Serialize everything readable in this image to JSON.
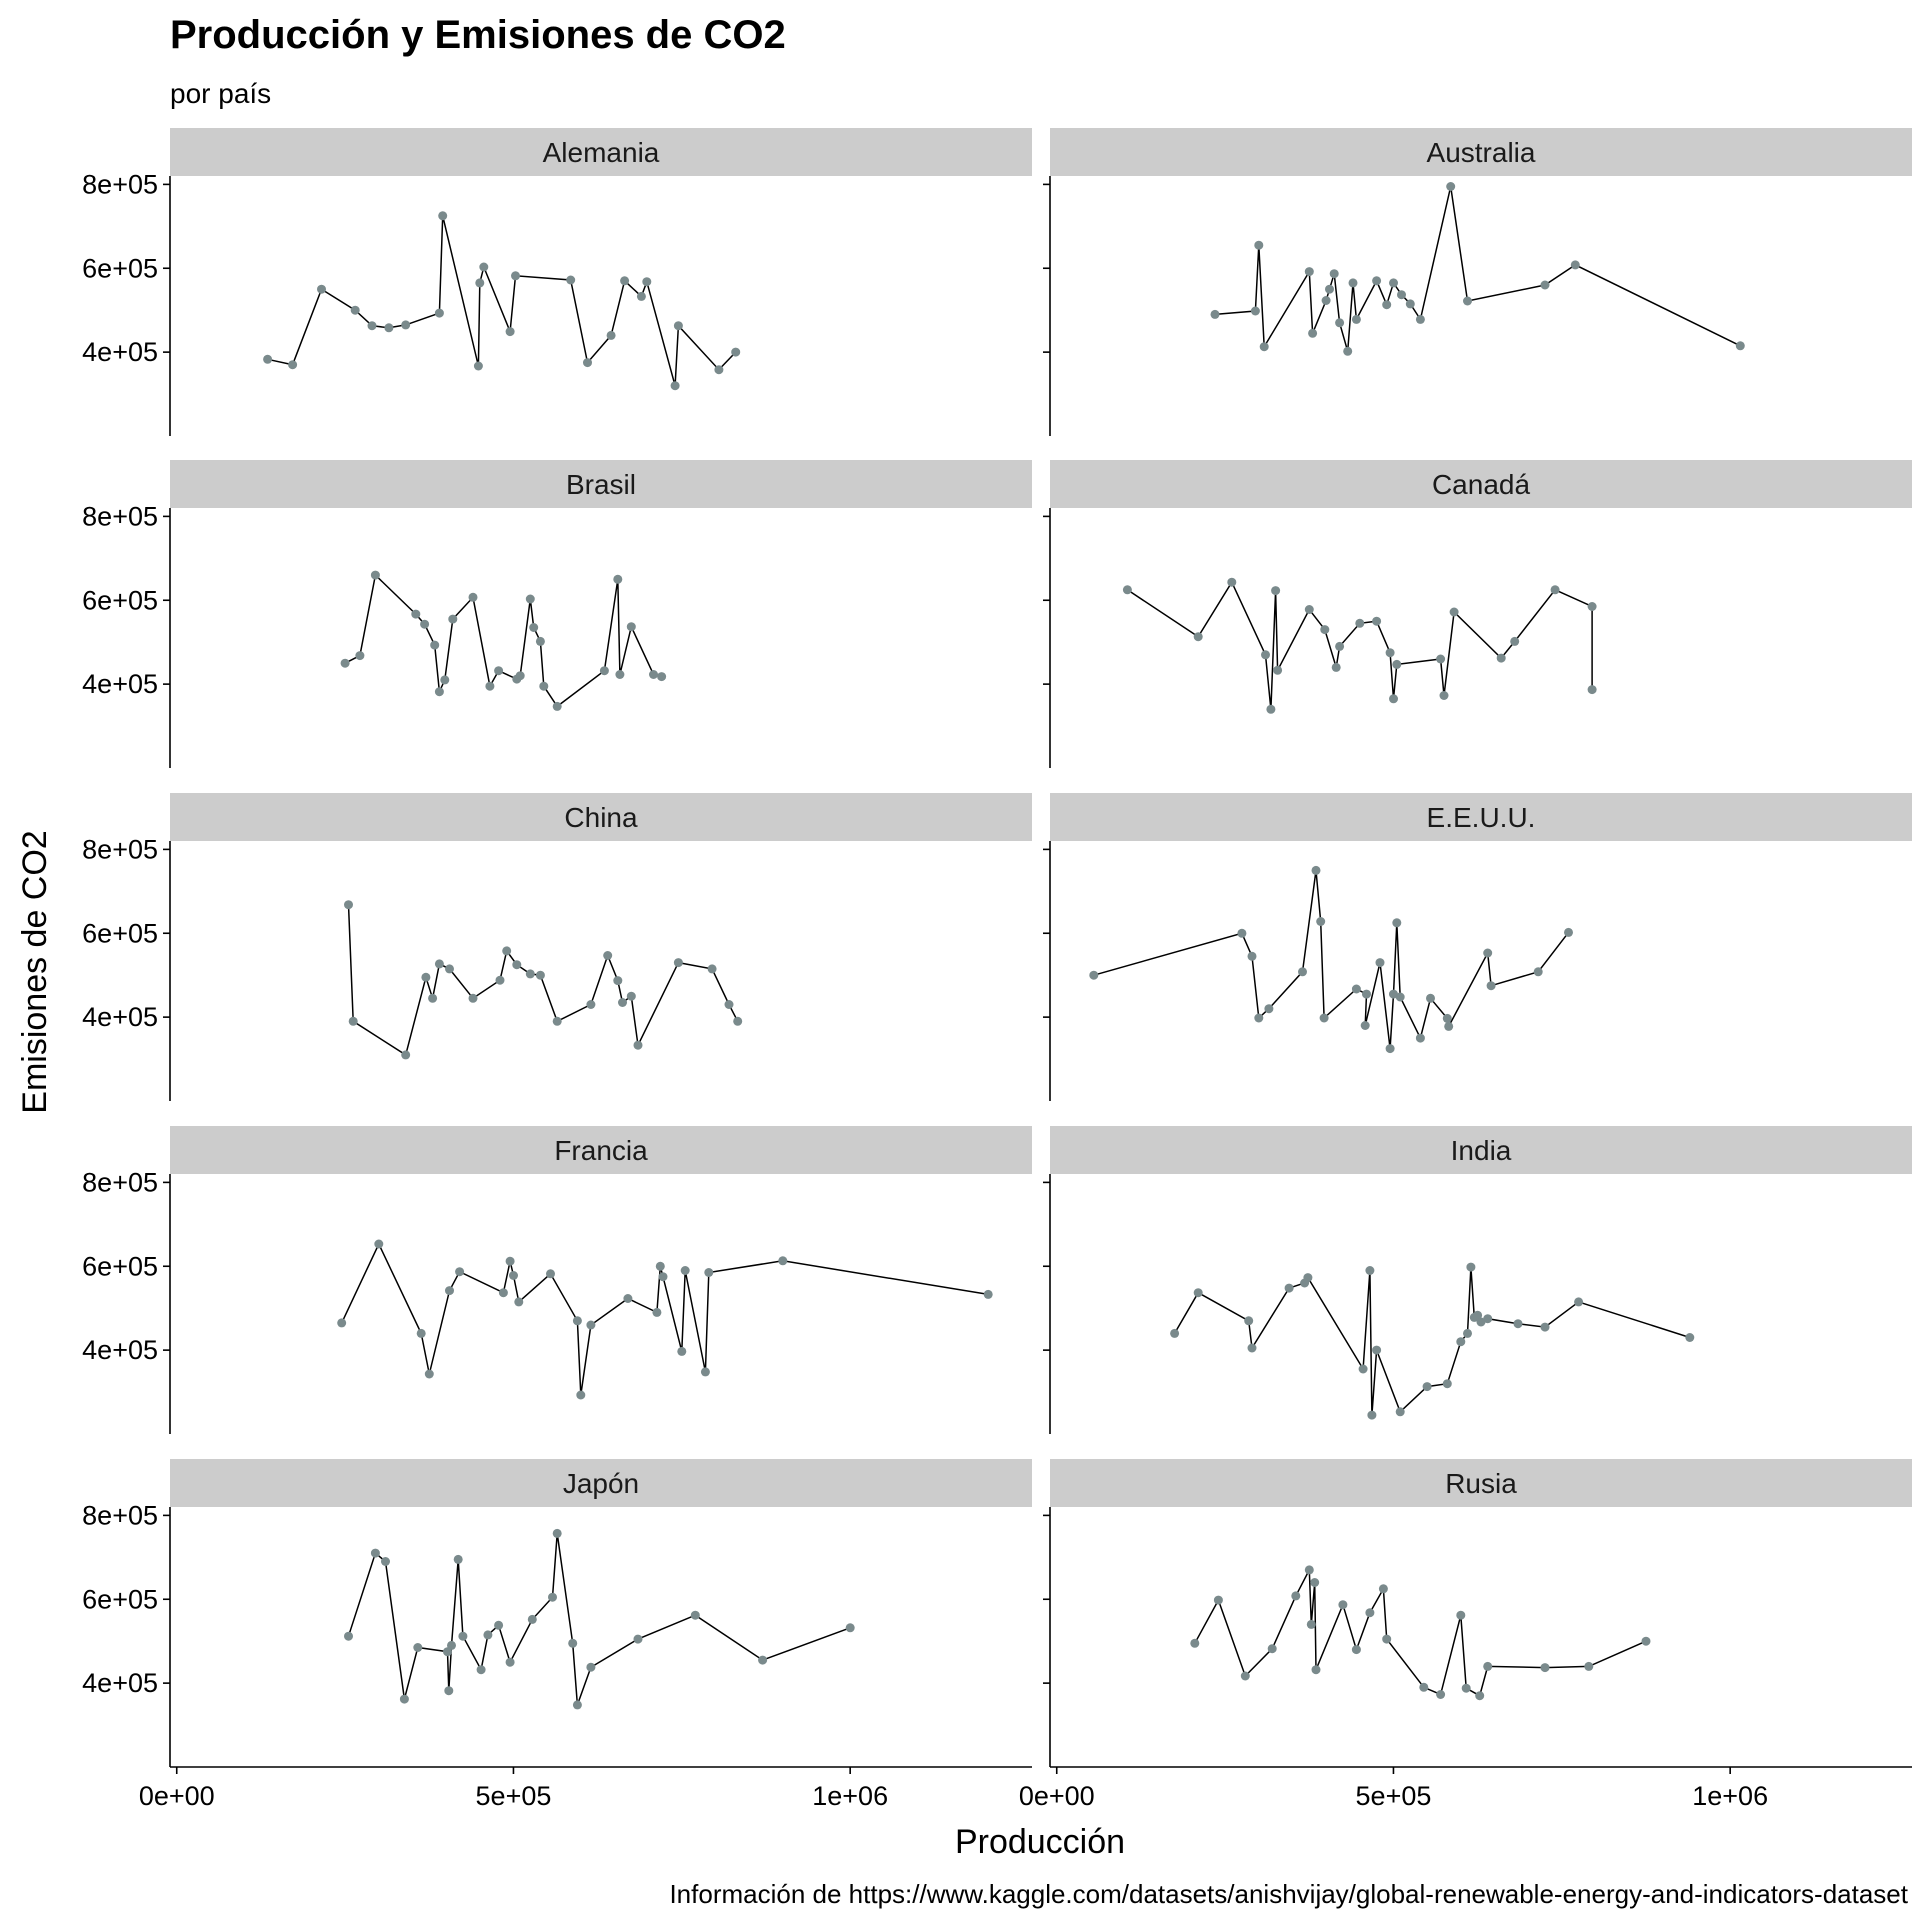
{
  "chart_data": {
    "type": "line",
    "title": "Producción y Emisiones de CO2",
    "subtitle": "por país",
    "xlabel": "Producción",
    "ylabel": "Emisiones de CO2",
    "caption": "Información de https://www.kaggle.com/datasets/anishvijay/global-renewable-energy-and-indicators-dataset",
    "xlim": [
      -10000,
      1270000
    ],
    "ylim": [
      200000,
      820000
    ],
    "x_ticks": [
      0,
      500000,
      1000000
    ],
    "x_tick_labels": [
      "0e+00",
      "5e+05",
      "1e+06"
    ],
    "y_ticks": [
      400000,
      600000,
      800000
    ],
    "y_tick_labels": [
      "4e+05",
      "6e+05",
      "8e+05"
    ],
    "grid": false,
    "legend": "none",
    "point_color": "#7a8a8c",
    "line_color": "#000000",
    "panels": [
      {
        "name": "Alemania",
        "points": [
          [
            135000,
            383000
          ],
          [
            172000,
            370000
          ],
          [
            215000,
            550000
          ],
          [
            265000,
            500000
          ],
          [
            290000,
            463000
          ],
          [
            315000,
            458000
          ],
          [
            340000,
            465000
          ],
          [
            390000,
            493000
          ],
          [
            395000,
            725000
          ],
          [
            448000,
            367000
          ],
          [
            450000,
            565000
          ],
          [
            456000,
            603000
          ],
          [
            495000,
            449000
          ],
          [
            503000,
            582000
          ],
          [
            585000,
            572000
          ],
          [
            610000,
            375000
          ],
          [
            645000,
            440000
          ],
          [
            665000,
            570000
          ],
          [
            690000,
            533000
          ],
          [
            698000,
            568000
          ],
          [
            740000,
            320000
          ],
          [
            745000,
            463000
          ],
          [
            805000,
            358000
          ],
          [
            830000,
            400000
          ]
        ]
      },
      {
        "name": "Australia",
        "points": [
          [
            235000,
            490000
          ],
          [
            295000,
            498000
          ],
          [
            300000,
            655000
          ],
          [
            308000,
            413000
          ],
          [
            375000,
            592000
          ],
          [
            380000,
            445000
          ],
          [
            400000,
            523000
          ],
          [
            405000,
            550000
          ],
          [
            412000,
            587000
          ],
          [
            420000,
            470000
          ],
          [
            432000,
            402000
          ],
          [
            440000,
            565000
          ],
          [
            445000,
            478000
          ],
          [
            475000,
            570000
          ],
          [
            490000,
            513000
          ],
          [
            500000,
            565000
          ],
          [
            512000,
            537000
          ],
          [
            525000,
            515000
          ],
          [
            540000,
            478000
          ],
          [
            585000,
            795000
          ],
          [
            610000,
            522000
          ],
          [
            725000,
            560000
          ],
          [
            770000,
            608000
          ],
          [
            1015000,
            415000
          ]
        ]
      },
      {
        "name": "Brasil",
        "points": [
          [
            250000,
            450000
          ],
          [
            272000,
            468000
          ],
          [
            295000,
            660000
          ],
          [
            355000,
            567000
          ],
          [
            368000,
            543000
          ],
          [
            383000,
            493000
          ],
          [
            390000,
            382000
          ],
          [
            398000,
            410000
          ],
          [
            410000,
            555000
          ],
          [
            440000,
            607000
          ],
          [
            465000,
            395000
          ],
          [
            478000,
            432000
          ],
          [
            505000,
            412000
          ],
          [
            510000,
            420000
          ],
          [
            525000,
            603000
          ],
          [
            530000,
            535000
          ],
          [
            540000,
            502000
          ],
          [
            545000,
            395000
          ],
          [
            565000,
            347000
          ],
          [
            635000,
            432000
          ],
          [
            655000,
            650000
          ],
          [
            658000,
            423000
          ],
          [
            675000,
            537000
          ],
          [
            708000,
            423000
          ],
          [
            720000,
            418000
          ]
        ]
      },
      {
        "name": "Canadá",
        "points": [
          [
            105000,
            625000
          ],
          [
            210000,
            513000
          ],
          [
            260000,
            643000
          ],
          [
            310000,
            470000
          ],
          [
            318000,
            340000
          ],
          [
            325000,
            623000
          ],
          [
            328000,
            433000
          ],
          [
            375000,
            578000
          ],
          [
            398000,
            530000
          ],
          [
            415000,
            440000
          ],
          [
            420000,
            490000
          ],
          [
            450000,
            545000
          ],
          [
            475000,
            550000
          ],
          [
            495000,
            475000
          ],
          [
            500000,
            365000
          ],
          [
            505000,
            447000
          ],
          [
            570000,
            460000
          ],
          [
            575000,
            373000
          ],
          [
            590000,
            572000
          ],
          [
            660000,
            462000
          ],
          [
            680000,
            502000
          ],
          [
            740000,
            625000
          ],
          [
            795000,
            585000
          ],
          [
            795000,
            387000
          ]
        ]
      },
      {
        "name": "China",
        "points": [
          [
            255000,
            668000
          ],
          [
            262000,
            390000
          ],
          [
            340000,
            310000
          ],
          [
            370000,
            495000
          ],
          [
            380000,
            445000
          ],
          [
            390000,
            527000
          ],
          [
            405000,
            515000
          ],
          [
            440000,
            445000
          ],
          [
            480000,
            488000
          ],
          [
            490000,
            558000
          ],
          [
            505000,
            525000
          ],
          [
            525000,
            503000
          ],
          [
            540000,
            500000
          ],
          [
            565000,
            390000
          ],
          [
            615000,
            430000
          ],
          [
            640000,
            547000
          ],
          [
            655000,
            487000
          ],
          [
            662000,
            435000
          ],
          [
            675000,
            450000
          ],
          [
            685000,
            333000
          ],
          [
            745000,
            530000
          ],
          [
            795000,
            515000
          ],
          [
            820000,
            430000
          ],
          [
            833000,
            390000
          ]
        ]
      },
      {
        "name": "E.E.U.U.",
        "points": [
          [
            55000,
            500000
          ],
          [
            275000,
            600000
          ],
          [
            290000,
            545000
          ],
          [
            300000,
            398000
          ],
          [
            315000,
            420000
          ],
          [
            365000,
            508000
          ],
          [
            385000,
            750000
          ],
          [
            392000,
            628000
          ],
          [
            397000,
            398000
          ],
          [
            445000,
            467000
          ],
          [
            460000,
            455000
          ],
          [
            458000,
            380000
          ],
          [
            480000,
            530000
          ],
          [
            495000,
            325000
          ],
          [
            500000,
            455000
          ],
          [
            505000,
            625000
          ],
          [
            510000,
            448000
          ],
          [
            540000,
            350000
          ],
          [
            555000,
            445000
          ],
          [
            580000,
            397000
          ],
          [
            582000,
            378000
          ],
          [
            640000,
            553000
          ],
          [
            645000,
            475000
          ],
          [
            715000,
            508000
          ],
          [
            760000,
            602000
          ]
        ]
      },
      {
        "name": "Francia",
        "points": [
          [
            245000,
            465000
          ],
          [
            300000,
            653000
          ],
          [
            363000,
            440000
          ],
          [
            375000,
            343000
          ],
          [
            405000,
            542000
          ],
          [
            420000,
            587000
          ],
          [
            485000,
            537000
          ],
          [
            495000,
            612000
          ],
          [
            500000,
            578000
          ],
          [
            508000,
            515000
          ],
          [
            555000,
            582000
          ],
          [
            595000,
            470000
          ],
          [
            600000,
            293000
          ],
          [
            615000,
            460000
          ],
          [
            670000,
            523000
          ],
          [
            713000,
            490000
          ],
          [
            718000,
            600000
          ],
          [
            722000,
            575000
          ],
          [
            750000,
            397000
          ],
          [
            755000,
            590000
          ],
          [
            785000,
            348000
          ],
          [
            790000,
            585000
          ],
          [
            900000,
            613000
          ],
          [
            1205000,
            533000
          ]
        ]
      },
      {
        "name": "India",
        "points": [
          [
            175000,
            440000
          ],
          [
            210000,
            537000
          ],
          [
            285000,
            470000
          ],
          [
            290000,
            405000
          ],
          [
            345000,
            548000
          ],
          [
            368000,
            560000
          ],
          [
            373000,
            573000
          ],
          [
            455000,
            355000
          ],
          [
            465000,
            590000
          ],
          [
            468000,
            245000
          ],
          [
            475000,
            400000
          ],
          [
            510000,
            253000
          ],
          [
            550000,
            313000
          ],
          [
            580000,
            320000
          ],
          [
            600000,
            420000
          ],
          [
            610000,
            440000
          ],
          [
            615000,
            598000
          ],
          [
            620000,
            478000
          ],
          [
            625000,
            483000
          ],
          [
            630000,
            467000
          ],
          [
            640000,
            475000
          ],
          [
            685000,
            463000
          ],
          [
            725000,
            455000
          ],
          [
            775000,
            515000
          ],
          [
            940000,
            430000
          ]
        ]
      },
      {
        "name": "Japón",
        "points": [
          [
            255000,
            512000
          ],
          [
            295000,
            710000
          ],
          [
            310000,
            690000
          ],
          [
            338000,
            362000
          ],
          [
            358000,
            485000
          ],
          [
            402000,
            475000
          ],
          [
            404000,
            382000
          ],
          [
            408000,
            490000
          ],
          [
            418000,
            695000
          ],
          [
            425000,
            512000
          ],
          [
            452000,
            432000
          ],
          [
            462000,
            515000
          ],
          [
            478000,
            538000
          ],
          [
            495000,
            450000
          ],
          [
            528000,
            552000
          ],
          [
            558000,
            605000
          ],
          [
            565000,
            757000
          ],
          [
            588000,
            495000
          ],
          [
            595000,
            348000
          ],
          [
            615000,
            438000
          ],
          [
            685000,
            505000
          ],
          [
            770000,
            562000
          ],
          [
            870000,
            455000
          ],
          [
            1000000,
            532000
          ]
        ]
      },
      {
        "name": "Rusia",
        "points": [
          [
            205000,
            495000
          ],
          [
            240000,
            598000
          ],
          [
            280000,
            417000
          ],
          [
            320000,
            482000
          ],
          [
            355000,
            608000
          ],
          [
            375000,
            670000
          ],
          [
            378000,
            540000
          ],
          [
            383000,
            640000
          ],
          [
            385000,
            432000
          ],
          [
            425000,
            587000
          ],
          [
            445000,
            480000
          ],
          [
            465000,
            568000
          ],
          [
            485000,
            625000
          ],
          [
            490000,
            505000
          ],
          [
            545000,
            390000
          ],
          [
            570000,
            373000
          ],
          [
            600000,
            562000
          ],
          [
            608000,
            388000
          ],
          [
            628000,
            370000
          ],
          [
            640000,
            440000
          ],
          [
            725000,
            437000
          ],
          [
            790000,
            440000
          ],
          [
            875000,
            500000
          ]
        ]
      }
    ]
  }
}
